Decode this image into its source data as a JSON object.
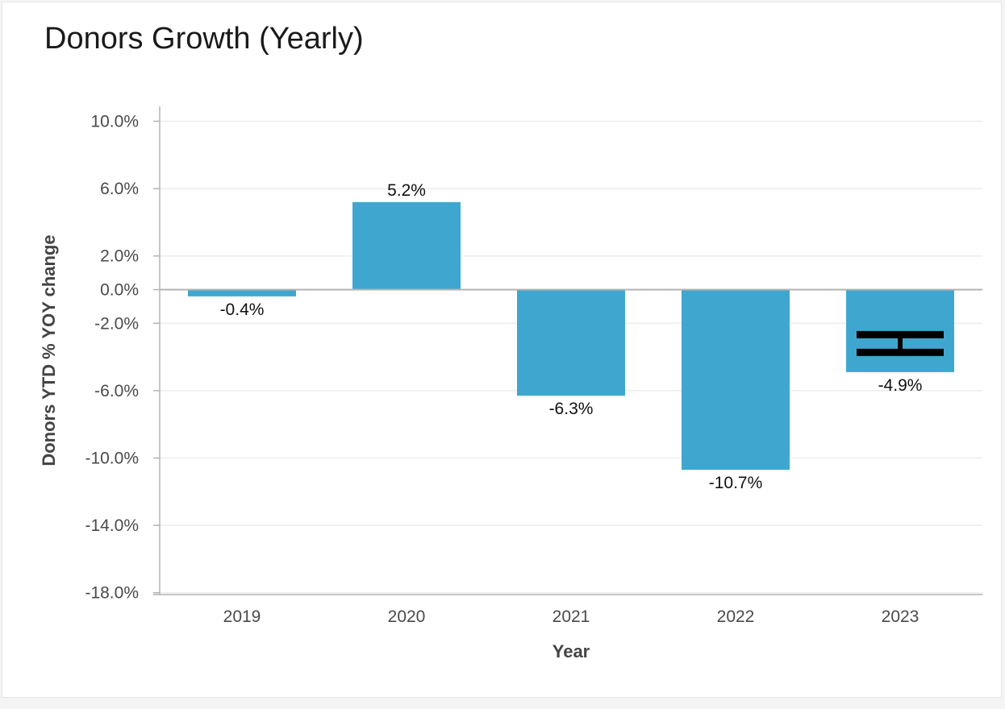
{
  "chart_data": {
    "type": "bar",
    "title": "Donors Growth (Yearly)",
    "xlabel": "Year",
    "ylabel": "Donors YTD % YOY change",
    "categories": [
      "2019",
      "2020",
      "2021",
      "2022",
      "2023"
    ],
    "values": [
      -0.4,
      5.2,
      -6.3,
      -10.7,
      -4.9
    ],
    "data_labels": [
      "-0.4%",
      "5.2%",
      "-6.3%",
      "-10.7%",
      "-4.9%"
    ],
    "yticks": [
      10,
      6,
      2,
      0,
      -2,
      -6,
      -10,
      -14,
      -18
    ],
    "ytick_labels": [
      "10.0%",
      "6.0%",
      "2.0%",
      "0.0%",
      "-2.0%",
      "-6.0%",
      "-10.0%",
      "-14.0%",
      "-18.0%"
    ],
    "ylim": [
      -18.5,
      10.5
    ],
    "grid": true,
    "legend": "none",
    "bar_color": "#3fa7cf",
    "grid_color": "#ececec",
    "axis_color": "#b3b3b3",
    "annotations": [
      {
        "type": "error-bar-marker",
        "category": "2023",
        "value": -3.2,
        "color": "#000000"
      }
    ]
  }
}
